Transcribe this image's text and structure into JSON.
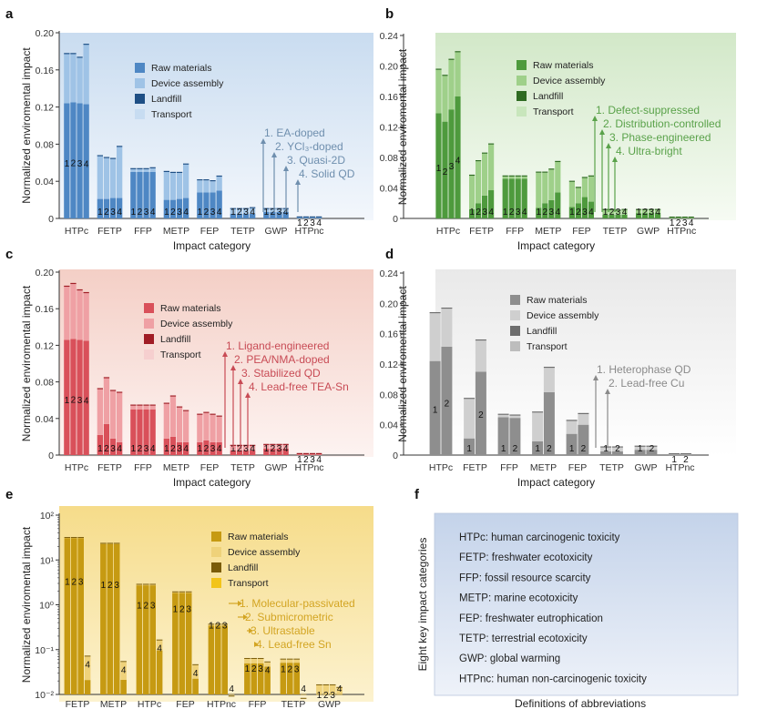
{
  "panels": {
    "a": {
      "letter": "a"
    },
    "b": {
      "letter": "b"
    },
    "c": {
      "letter": "c"
    },
    "d": {
      "letter": "d"
    },
    "e": {
      "letter": "e"
    },
    "f": {
      "letter": "f"
    }
  },
  "colors": {
    "a": {
      "bg_top": "#c9dcf0",
      "bg_bottom": "#f3f7fc",
      "raw": "#4e87c4",
      "device": "#9fc3e6",
      "landfill": "#1e4f85",
      "transport": "#c7dcf1",
      "anno": "#6f8fae"
    },
    "b": {
      "bg_top": "#d2e8c8",
      "bg_bottom": "#f6fbf3",
      "raw": "#4e9a3d",
      "device": "#9fd08a",
      "landfill": "#2f6b22",
      "transport": "#c8e6bc",
      "anno": "#5aa24a"
    },
    "c": {
      "bg_top": "#f4cfc6",
      "bg_bottom": "#fdf3f1",
      "raw": "#d9505a",
      "device": "#efa0a4",
      "landfill": "#a01d25",
      "transport": "#f6cfcf",
      "anno": "#c84b55"
    },
    "d": {
      "bg_top": "#e9e9e9",
      "bg_bottom": "#ffffff",
      "raw": "#8e8e8e",
      "device": "#cfcfcf",
      "landfill": "#6d6d6d",
      "transport": "#bdbdbd",
      "anno": "#8a8a8a"
    },
    "e": {
      "bg_top": "#f6dc8a",
      "bg_bottom": "#fcf2cf",
      "raw": "#c69a12",
      "device": "#efd27a",
      "landfill": "#7a5c0a",
      "transport": "#f2c41a",
      "anno": "#d3a523"
    },
    "f": {
      "bg_top": "#c4d3ea",
      "bg_bottom": "#eef2f9"
    }
  },
  "chart_data": [
    {
      "panel": "a",
      "type": "bar",
      "stacked": true,
      "ylabel": "Normalized enviromental impact",
      "xlabel": "Impact category",
      "ylim": [
        0,
        0.2
      ],
      "yticks": [
        "0",
        "0.04",
        "0.08",
        "0.12",
        "0.16",
        "0.20"
      ],
      "yticks_values": [
        0,
        0.04,
        0.08,
        0.12,
        0.16,
        0.2
      ],
      "categories": [
        "HTPc",
        "FETP",
        "FFP",
        "METP",
        "FEP",
        "TETP",
        "GWP",
        "HTPnc"
      ],
      "bar_labels": [
        "1",
        "2",
        "3",
        "4"
      ],
      "legend": [
        "Raw materials",
        "Device assembly",
        "Landfill",
        "Transport"
      ],
      "raw_materials": [
        [
          0.124,
          0.125,
          0.124,
          0.123
        ],
        [
          0.021,
          0.021,
          0.022,
          0.022
        ],
        [
          0.05,
          0.05,
          0.05,
          0.05
        ],
        [
          0.02,
          0.02,
          0.021,
          0.022
        ],
        [
          0.028,
          0.028,
          0.028,
          0.03
        ],
        [
          0.005,
          0.005,
          0.005,
          0.005
        ],
        [
          0.007,
          0.007,
          0.007,
          0.007
        ],
        [
          0.0005,
          0.0005,
          0.0005,
          0.0005
        ]
      ],
      "device_assembly": [
        [
          0.053,
          0.052,
          0.049,
          0.064
        ],
        [
          0.046,
          0.044,
          0.042,
          0.055
        ],
        [
          0.003,
          0.003,
          0.003,
          0.004
        ],
        [
          0.03,
          0.029,
          0.028,
          0.036
        ],
        [
          0.013,
          0.013,
          0.012,
          0.015
        ],
        [
          0.005,
          0.005,
          0.005,
          0.006
        ],
        [
          0.003,
          0.003,
          0.003,
          0.003
        ],
        [
          0.0005,
          0.0005,
          0.0005,
          0.0005
        ]
      ],
      "annotations": [
        "1. EA-doped",
        "2. YCl₃-doped",
        "3. Quasi-2D",
        "4. Solid QD"
      ]
    },
    {
      "panel": "b",
      "type": "bar",
      "stacked": true,
      "ylabel": "Normalized enviromental impact",
      "xlabel": "Impact category",
      "ylim": [
        0,
        0.24
      ],
      "yticks": [
        "0",
        "0.04",
        "0.08",
        "0.12",
        "0.16",
        "0.20",
        "0.24"
      ],
      "yticks_values": [
        0,
        0.04,
        0.08,
        0.12,
        0.16,
        0.2,
        0.24
      ],
      "categories": [
        "HTPc",
        "FETP",
        "FFP",
        "METP",
        "FEP",
        "TETP",
        "GWP",
        "HTPnc"
      ],
      "bar_labels": [
        "1",
        "2",
        "3",
        "4"
      ],
      "legend": [
        "Raw materials",
        "Device assembly",
        "Landfill",
        "Transport"
      ],
      "raw_materials": [
        [
          0.138,
          0.127,
          0.143,
          0.16
        ],
        [
          0.012,
          0.02,
          0.03,
          0.037
        ],
        [
          0.052,
          0.052,
          0.052,
          0.052
        ],
        [
          0.014,
          0.02,
          0.024,
          0.034
        ],
        [
          0.015,
          0.02,
          0.028,
          0.022
        ],
        [
          0.005,
          0.005,
          0.005,
          0.005
        ],
        [
          0.007,
          0.007,
          0.007,
          0.007
        ],
        [
          0.0005,
          0.0005,
          0.0005,
          0.0005
        ]
      ],
      "device_assembly": [
        [
          0.057,
          0.06,
          0.065,
          0.058
        ],
        [
          0.044,
          0.055,
          0.055,
          0.06
        ],
        [
          0.003,
          0.003,
          0.003,
          0.003
        ],
        [
          0.046,
          0.04,
          0.04,
          0.04
        ],
        [
          0.033,
          0.02,
          0.025,
          0.033
        ],
        [
          0.006,
          0.006,
          0.005,
          0.006
        ],
        [
          0.004,
          0.004,
          0.004,
          0.004
        ],
        [
          0.0005,
          0.0005,
          0.0005,
          0.0005
        ]
      ],
      "annotations": [
        "1. Defect-suppressed",
        "2. Distribution-controlled",
        "3. Phase-engineered",
        "4. Ultra-bright"
      ]
    },
    {
      "panel": "c",
      "type": "bar",
      "stacked": true,
      "ylabel": "Normalized enviromental impact",
      "xlabel": "Impact category",
      "ylim": [
        0,
        0.2
      ],
      "yticks": [
        "0",
        "0.04",
        "0.08",
        "0.12",
        "0.16",
        "0.20"
      ],
      "yticks_values": [
        0,
        0.04,
        0.08,
        0.12,
        0.16,
        0.2
      ],
      "categories": [
        "HTPc",
        "FETP",
        "FFP",
        "METP",
        "FEP",
        "TETP",
        "GWP",
        "HTPnc"
      ],
      "bar_labels": [
        "1",
        "2",
        "3",
        "4"
      ],
      "legend": [
        "Raw materials",
        "Device assembly",
        "Landfill",
        "Transport"
      ],
      "raw_materials": [
        [
          0.126,
          0.127,
          0.126,
          0.125
        ],
        [
          0.022,
          0.034,
          0.018,
          0.014
        ],
        [
          0.05,
          0.05,
          0.05,
          0.05
        ],
        [
          0.018,
          0.02,
          0.014,
          0.014
        ],
        [
          0.014,
          0.016,
          0.014,
          0.014
        ],
        [
          0.005,
          0.005,
          0.005,
          0.005
        ],
        [
          0.007,
          0.007,
          0.007,
          0.007
        ],
        [
          0.0005,
          0.0005,
          0.0005,
          0.0005
        ]
      ],
      "device_assembly": [
        [
          0.058,
          0.06,
          0.054,
          0.052
        ],
        [
          0.05,
          0.05,
          0.052,
          0.054
        ],
        [
          0.004,
          0.004,
          0.004,
          0.004
        ],
        [
          0.038,
          0.044,
          0.038,
          0.034
        ],
        [
          0.03,
          0.03,
          0.03,
          0.028
        ],
        [
          0.005,
          0.005,
          0.005,
          0.005
        ],
        [
          0.004,
          0.004,
          0.004,
          0.004
        ],
        [
          0.0005,
          0.0005,
          0.0005,
          0.0005
        ]
      ],
      "annotations": [
        "1. Ligand-engineered",
        "2. PEA/NMA-doped",
        "3. Stabilized QD",
        "4. Lead-free TEA-Sn"
      ]
    },
    {
      "panel": "d",
      "type": "bar",
      "stacked": true,
      "ylabel": "Normalized enviromental impact",
      "xlabel": "Impact category",
      "ylim": [
        0,
        0.24
      ],
      "yticks": [
        "0",
        "0.04",
        "0.08",
        "0.12",
        "0.16",
        "0.20",
        "0.24"
      ],
      "yticks_values": [
        0,
        0.04,
        0.08,
        0.12,
        0.16,
        0.2,
        0.24
      ],
      "categories": [
        "HTPc",
        "FETP",
        "FFP",
        "METP",
        "FEP",
        "TETP",
        "GWP",
        "HTPnc"
      ],
      "bar_labels": [
        "1",
        "2"
      ],
      "legend": [
        "Raw materials",
        "Device assembly",
        "Landfill",
        "Transport"
      ],
      "raw_materials": [
        [
          0.124,
          0.143
        ],
        [
          0.022,
          0.11
        ],
        [
          0.05,
          0.049
        ],
        [
          0.018,
          0.083
        ],
        [
          0.028,
          0.04
        ],
        [
          0.005,
          0.005
        ],
        [
          0.007,
          0.007
        ],
        [
          0.0005,
          0.0005
        ]
      ],
      "device_assembly": [
        [
          0.063,
          0.05
        ],
        [
          0.052,
          0.041
        ],
        [
          0.003,
          0.003
        ],
        [
          0.038,
          0.032
        ],
        [
          0.017,
          0.014
        ],
        [
          0.005,
          0.005
        ],
        [
          0.004,
          0.004
        ],
        [
          0.0005,
          0.0005
        ]
      ],
      "annotations": [
        "1. Heterophase QD",
        "2. Lead-free Cu"
      ]
    },
    {
      "panel": "e",
      "type": "bar",
      "stacked": true,
      "yscale": "log",
      "ylabel": "Normalized enviromental impact",
      "xlabel": "",
      "ylim": [
        0.01,
        100
      ],
      "yticks": [
        "10⁻²",
        "10⁻¹",
        "10⁰",
        "10¹",
        "10²"
      ],
      "yticks_values": [
        0.01,
        0.1,
        1,
        10,
        100
      ],
      "categories": [
        "FETP",
        "METP",
        "HTPc",
        "FEP",
        "HTPnc",
        "FFP",
        "TETP",
        "GWP"
      ],
      "bar_labels": [
        "1",
        "2",
        "3",
        "4"
      ],
      "legend": [
        "Raw materials",
        "Device assembly",
        "Landfill",
        "Transport"
      ],
      "totals": [
        [
          31,
          31,
          31,
          0.07
        ],
        [
          23,
          23,
          23,
          0.053
        ],
        [
          2.8,
          2.8,
          2.8,
          0.16
        ],
        [
          1.9,
          1.9,
          1.9,
          0.045
        ],
        [
          0.36,
          0.36,
          0.36,
          0.009
        ],
        [
          0.062,
          0.062,
          0.062,
          0.052
        ],
        [
          0.06,
          0.06,
          0.06,
          0.008
        ],
        [
          0.016,
          0.016,
          0.016,
          0.014
        ]
      ],
      "raw_share": [
        [
          1.0,
          1.0,
          1.0,
          0.3
        ],
        [
          1.0,
          1.0,
          1.0,
          0.4
        ],
        [
          0.97,
          0.97,
          0.97,
          0.6
        ],
        [
          0.97,
          0.97,
          0.97,
          0.5
        ],
        [
          0.96,
          0.96,
          0.96,
          0.5
        ],
        [
          0.8,
          0.8,
          0.8,
          0.8
        ],
        [
          0.85,
          0.85,
          0.85,
          0.6
        ],
        [
          0.6,
          0.6,
          0.6,
          0.6
        ]
      ],
      "annotations": [
        "1. Molecular-passivated",
        "2. Submicrometric",
        "3. Ultrastable",
        "4. Lead-free Sn"
      ]
    }
  ],
  "panel_f": {
    "side_label": "Eight key impact categories",
    "items": [
      "HTPc: human carcinogenic toxicity",
      "FETP: freshwater ecotoxicity",
      "FFP: fossil resource scarcity",
      "METP: marine ecotoxicity",
      "FEP: freshwater eutrophication",
      "TETP: terrestrial ecotoxicity",
      "GWP: global warming",
      "HTPnc: human non-carcinogenic toxicity"
    ],
    "caption": "Definitions of abbreviations"
  }
}
